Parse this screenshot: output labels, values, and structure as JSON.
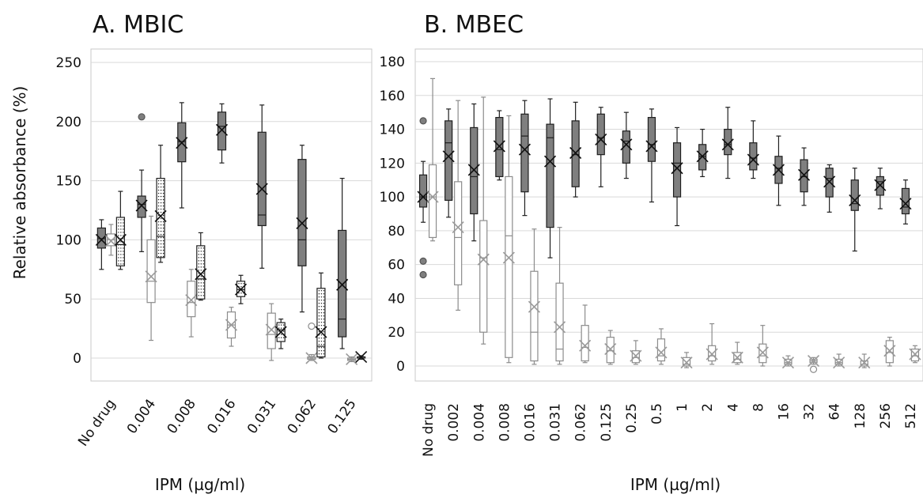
{
  "chart_data": [
    {
      "type": "box",
      "title": "A. MBIC",
      "xlabel": "IPM (µg/ml)",
      "ylabel": "Relative absorbance (%)",
      "ylim": [
        -10,
        250
      ],
      "yticks": [
        0,
        50,
        100,
        150,
        200,
        250
      ],
      "grid": true,
      "legend": "none",
      "categories": [
        "No drug",
        "0.004",
        "0.008",
        "0.016",
        "0.031",
        "0.062",
        "0.125"
      ],
      "series_styles": [
        {
          "style": "dark",
          "fill": "#7f7f7f",
          "stroke": "#1f1f1f"
        },
        {
          "style": "white",
          "fill": "#ffffff",
          "stroke": "#8c8c8c"
        },
        {
          "style": "dotted",
          "fill": "#ffffff",
          "stroke": "#1f1f1f"
        }
      ],
      "boxes": [
        {
          "category": "No drug",
          "style": "dark",
          "min": 75,
          "q1": 93,
          "median": 101,
          "q3": 110,
          "max": 117,
          "mean": 100,
          "outliers": []
        },
        {
          "category": "No drug",
          "style": "white",
          "min": 87,
          "q1": 95,
          "median": 100,
          "q3": 105,
          "max": 113,
          "mean": 99,
          "outliers": []
        },
        {
          "category": "No drug",
          "style": "dotted",
          "min": 75,
          "q1": 78,
          "median": 96,
          "q3": 119,
          "max": 141,
          "mean": 100,
          "outliers": []
        },
        {
          "category": "0.004",
          "style": "dark",
          "min": 90,
          "q1": 119,
          "median": 130,
          "q3": 137,
          "max": 159,
          "mean": 129,
          "outliers": [
            204
          ]
        },
        {
          "category": "0.004",
          "style": "white",
          "min": 15,
          "q1": 47,
          "median": 65,
          "q3": 100,
          "max": 120,
          "mean": 69,
          "outliers": []
        },
        {
          "category": "0.004",
          "style": "dotted",
          "min": 81,
          "q1": 85,
          "median": 103,
          "q3": 152,
          "max": 180,
          "mean": 120,
          "outliers": []
        },
        {
          "category": "0.008",
          "style": "dark",
          "min": 127,
          "q1": 166,
          "median": 183,
          "q3": 199,
          "max": 216,
          "mean": 182,
          "outliers": []
        },
        {
          "category": "0.008",
          "style": "white",
          "min": 18,
          "q1": 35,
          "median": 47,
          "q3": 65,
          "max": 75,
          "mean": 49,
          "outliers": []
        },
        {
          "category": "0.008",
          "style": "dotted",
          "min": 49,
          "q1": 50,
          "median": 67,
          "q3": 95,
          "max": 106,
          "mean": 71,
          "outliers": []
        },
        {
          "category": "0.016",
          "style": "dark",
          "min": 165,
          "q1": 176,
          "median": 196,
          "q3": 208,
          "max": 215,
          "mean": 193,
          "outliers": []
        },
        {
          "category": "0.016",
          "style": "white",
          "min": 10,
          "q1": 17,
          "median": 28,
          "q3": 39,
          "max": 43,
          "mean": 28,
          "outliers": []
        },
        {
          "category": "0.016",
          "style": "dotted",
          "min": 46,
          "q1": 52,
          "median": 58,
          "q3": 65,
          "max": 70,
          "mean": 58,
          "outliers": []
        },
        {
          "category": "0.031",
          "style": "dark",
          "min": 76,
          "q1": 112,
          "median": 121,
          "q3": 191,
          "max": 214,
          "mean": 143,
          "outliers": []
        },
        {
          "category": "0.031",
          "style": "white",
          "min": -2,
          "q1": 8,
          "median": 20,
          "q3": 38,
          "max": 46,
          "mean": 24,
          "outliers": []
        },
        {
          "category": "0.031",
          "style": "dotted",
          "min": 8,
          "q1": 14,
          "median": 24,
          "q3": 30,
          "max": 33,
          "mean": 22,
          "outliers": []
        },
        {
          "category": "0.062",
          "style": "dark",
          "min": 39,
          "q1": 78,
          "median": 100,
          "q3": 168,
          "max": 180,
          "mean": 114,
          "outliers": []
        },
        {
          "category": "0.062",
          "style": "white",
          "min": -2,
          "q1": -1,
          "median": 0,
          "q3": 1,
          "max": 3,
          "mean": 0,
          "outliers": [
            27
          ]
        },
        {
          "category": "0.062",
          "style": "dotted",
          "min": 0,
          "q1": 1,
          "median": 10,
          "q3": 59,
          "max": 72,
          "mean": 22,
          "outliers": []
        },
        {
          "category": "0.125",
          "style": "dark",
          "min": 8,
          "q1": 18,
          "median": 33,
          "q3": 108,
          "max": 152,
          "mean": 62,
          "outliers": []
        },
        {
          "category": "0.125",
          "style": "white",
          "min": -3,
          "q1": -2,
          "median": -1,
          "q3": 0,
          "max": 1,
          "mean": -1,
          "outliers": []
        },
        {
          "category": "0.125",
          "style": "dotted",
          "min": -1,
          "q1": 0,
          "median": 1,
          "q3": 1,
          "max": 2,
          "mean": 1,
          "outliers": []
        }
      ]
    },
    {
      "type": "box",
      "title": "B. MBEC",
      "xlabel": "IPM (µg/ml)",
      "ylabel": "",
      "ylim": [
        -10,
        180
      ],
      "yticks": [
        0,
        20,
        40,
        60,
        80,
        100,
        120,
        140,
        160,
        180
      ],
      "grid": true,
      "legend": "none",
      "categories": [
        "No drug",
        "0.002",
        "0.004",
        "0.008",
        "0.016",
        "0.031",
        "0.062",
        "0.125",
        "0.25",
        "0.5",
        "1",
        "2",
        "4",
        "8",
        "16",
        "32",
        "64",
        "128",
        "256",
        "512"
      ],
      "series_styles": [
        {
          "style": "dark",
          "fill": "#7f7f7f",
          "stroke": "#1f1f1f"
        },
        {
          "style": "white",
          "fill": "#ffffff",
          "stroke": "#8c8c8c"
        }
      ],
      "boxes": [
        {
          "category": "No drug",
          "style": "dark",
          "min": 85,
          "q1": 94,
          "median": 100,
          "q3": 113,
          "max": 121,
          "mean": 100,
          "outliers": [
            145,
            62,
            54
          ]
        },
        {
          "category": "No drug",
          "style": "white",
          "min": 74,
          "q1": 76,
          "median": 100,
          "q3": 119,
          "max": 170,
          "mean": 100,
          "outliers": []
        },
        {
          "category": "0.002",
          "style": "dark",
          "min": 88,
          "q1": 98,
          "median": 132,
          "q3": 145,
          "max": 152,
          "mean": 124,
          "outliers": []
        },
        {
          "category": "0.002",
          "style": "white",
          "min": 33,
          "q1": 48,
          "median": 76,
          "q3": 109,
          "max": 157,
          "mean": 82,
          "outliers": []
        },
        {
          "category": "0.004",
          "style": "dark",
          "min": 74,
          "q1": 90,
          "median": 112,
          "q3": 141,
          "max": 155,
          "mean": 116,
          "outliers": []
        },
        {
          "category": "0.004",
          "style": "white",
          "min": 13,
          "q1": 20,
          "median": 64,
          "q3": 86,
          "max": 159,
          "mean": 63,
          "outliers": []
        },
        {
          "category": "0.008",
          "style": "dark",
          "min": 110,
          "q1": 112,
          "median": 128,
          "q3": 147,
          "max": 151,
          "mean": 130,
          "outliers": []
        },
        {
          "category": "0.008",
          "style": "white",
          "min": 2,
          "q1": 5,
          "median": 77,
          "q3": 112,
          "max": 148,
          "mean": 64,
          "outliers": []
        },
        {
          "category": "0.016",
          "style": "dark",
          "min": 89,
          "q1": 103,
          "median": 136,
          "q3": 149,
          "max": 157,
          "mean": 128,
          "outliers": []
        },
        {
          "category": "0.016",
          "style": "white",
          "min": 1,
          "q1": 3,
          "median": 20,
          "q3": 56,
          "max": 81,
          "mean": 35,
          "outliers": []
        },
        {
          "category": "0.031",
          "style": "dark",
          "min": 64,
          "q1": 82,
          "median": 135,
          "q3": 143,
          "max": 158,
          "mean": 121,
          "outliers": []
        },
        {
          "category": "0.031",
          "style": "white",
          "min": 1,
          "q1": 3,
          "median": 10,
          "q3": 49,
          "max": 82,
          "mean": 23,
          "outliers": []
        },
        {
          "category": "0.062",
          "style": "dark",
          "min": 100,
          "q1": 106,
          "median": 125,
          "q3": 145,
          "max": 156,
          "mean": 126,
          "outliers": []
        },
        {
          "category": "0.062",
          "style": "white",
          "min": 2,
          "q1": 3,
          "median": 11,
          "q3": 24,
          "max": 36,
          "mean": 12,
          "outliers": []
        },
        {
          "category": "0.125",
          "style": "dark",
          "min": 106,
          "q1": 125,
          "median": 135,
          "q3": 149,
          "max": 153,
          "mean": 134,
          "outliers": []
        },
        {
          "category": "0.125",
          "style": "white",
          "min": 1,
          "q1": 2,
          "median": 9,
          "q3": 17,
          "max": 21,
          "mean": 10,
          "outliers": []
        },
        {
          "category": "0.25",
          "style": "dark",
          "min": 111,
          "q1": 120,
          "median": 133,
          "q3": 139,
          "max": 150,
          "mean": 131,
          "outliers": []
        },
        {
          "category": "0.25",
          "style": "white",
          "min": 1,
          "q1": 2,
          "median": 5,
          "q3": 9,
          "max": 15,
          "mean": 6,
          "outliers": []
        },
        {
          "category": "0.5",
          "style": "dark",
          "min": 97,
          "q1": 121,
          "median": 131,
          "q3": 147,
          "max": 152,
          "mean": 130,
          "outliers": []
        },
        {
          "category": "0.5",
          "style": "white",
          "min": 1,
          "q1": 3,
          "median": 6,
          "q3": 16,
          "max": 22,
          "mean": 8,
          "outliers": []
        },
        {
          "category": "1",
          "style": "dark",
          "min": 83,
          "q1": 100,
          "median": 120,
          "q3": 132,
          "max": 141,
          "mean": 117,
          "outliers": []
        },
        {
          "category": "1",
          "style": "white",
          "min": -1,
          "q1": 0,
          "median": 1,
          "q3": 5,
          "max": 8,
          "mean": 2,
          "outliers": []
        },
        {
          "category": "2",
          "style": "dark",
          "min": 112,
          "q1": 116,
          "median": 124,
          "q3": 131,
          "max": 140,
          "mean": 124,
          "outliers": []
        },
        {
          "category": "2",
          "style": "white",
          "min": 1,
          "q1": 3,
          "median": 6,
          "q3": 12,
          "max": 25,
          "mean": 7,
          "outliers": []
        },
        {
          "category": "4",
          "style": "dark",
          "min": 111,
          "q1": 125,
          "median": 131,
          "q3": 140,
          "max": 153,
          "mean": 131,
          "outliers": []
        },
        {
          "category": "4",
          "style": "white",
          "min": 1,
          "q1": 2,
          "median": 4,
          "q3": 8,
          "max": 14,
          "mean": 5,
          "outliers": []
        },
        {
          "category": "8",
          "style": "dark",
          "min": 111,
          "q1": 116,
          "median": 123,
          "q3": 132,
          "max": 145,
          "mean": 122,
          "outliers": []
        },
        {
          "category": "8",
          "style": "white",
          "min": 0,
          "q1": 2,
          "median": 6,
          "q3": 13,
          "max": 24,
          "mean": 8,
          "outliers": []
        },
        {
          "category": "16",
          "style": "dark",
          "min": 95,
          "q1": 108,
          "median": 117,
          "q3": 124,
          "max": 136,
          "mean": 116,
          "outliers": []
        },
        {
          "category": "16",
          "style": "white",
          "min": 0,
          "q1": 1,
          "median": 2,
          "q3": 4,
          "max": 6,
          "mean": 2,
          "outliers": []
        },
        {
          "category": "32",
          "style": "dark",
          "min": 95,
          "q1": 103,
          "median": 112,
          "q3": 122,
          "max": 129,
          "mean": 113,
          "outliers": []
        },
        {
          "category": "32",
          "style": "white",
          "min": 1,
          "q1": 2,
          "median": 3,
          "q3": 4,
          "max": 5,
          "mean": 3,
          "outliers": [
            -2
          ]
        },
        {
          "category": "64",
          "style": "dark",
          "min": 91,
          "q1": 100,
          "median": 111,
          "q3": 117,
          "max": 119,
          "mean": 109,
          "outliers": []
        },
        {
          "category": "64",
          "style": "white",
          "min": 0,
          "q1": 1,
          "median": 2,
          "q3": 4,
          "max": 7,
          "mean": 2,
          "outliers": []
        },
        {
          "category": "128",
          "style": "dark",
          "min": 68,
          "q1": 92,
          "median": 96,
          "q3": 110,
          "max": 117,
          "mean": 98,
          "outliers": []
        },
        {
          "category": "128",
          "style": "white",
          "min": -1,
          "q1": 0,
          "median": 1,
          "q3": 3,
          "max": 7,
          "mean": 2,
          "outliers": []
        },
        {
          "category": "256",
          "style": "dark",
          "min": 93,
          "q1": 101,
          "median": 109,
          "q3": 112,
          "max": 117,
          "mean": 107,
          "outliers": []
        },
        {
          "category": "256",
          "style": "white",
          "min": 0,
          "q1": 2,
          "median": 8,
          "q3": 15,
          "max": 17,
          "mean": 9,
          "outliers": []
        },
        {
          "category": "512",
          "style": "dark",
          "min": 84,
          "q1": 90,
          "median": 94,
          "q3": 105,
          "max": 110,
          "mean": 96,
          "outliers": []
        },
        {
          "category": "512",
          "style": "white",
          "min": 2,
          "q1": 3,
          "median": 6,
          "q3": 10,
          "max": 12,
          "mean": 7,
          "outliers": []
        }
      ]
    }
  ]
}
